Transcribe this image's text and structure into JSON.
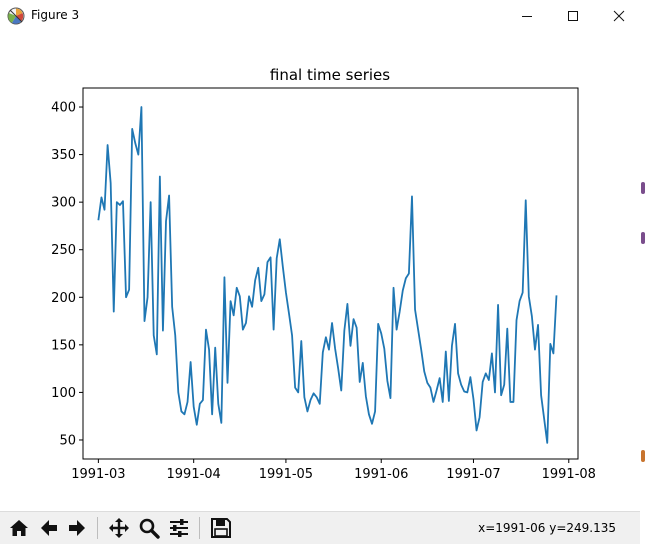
{
  "window": {
    "title": "Figure 3",
    "controls": {
      "minimize": "minimize-icon",
      "maximize": "maximize-icon",
      "close": "close-icon"
    }
  },
  "toolbar": {
    "buttons": [
      {
        "name": "home",
        "icon": "home-icon"
      },
      {
        "name": "back",
        "icon": "arrow-left-icon"
      },
      {
        "name": "forward",
        "icon": "arrow-right-icon"
      },
      {
        "name": "pan",
        "icon": "move-icon"
      },
      {
        "name": "zoom",
        "icon": "zoom-icon"
      },
      {
        "name": "configure-subplots",
        "icon": "sliders-icon"
      },
      {
        "name": "save",
        "icon": "save-icon"
      }
    ],
    "coordinates": "x=1991-06 y=249.135"
  },
  "chart_data": {
    "type": "line",
    "title": "final time series",
    "xlabel": "",
    "ylabel": "",
    "color": "#1f77b4",
    "xlim": [
      "1991-02-24",
      "1991-08-04"
    ],
    "ylim": [
      30,
      420
    ],
    "x_ticks": [
      {
        "date": "1991-03-01",
        "label": "1991-03"
      },
      {
        "date": "1991-04-01",
        "label": "1991-04"
      },
      {
        "date": "1991-05-01",
        "label": "1991-05"
      },
      {
        "date": "1991-06-01",
        "label": "1991-06"
      },
      {
        "date": "1991-07-01",
        "label": "1991-07"
      },
      {
        "date": "1991-08-01",
        "label": "1991-08"
      }
    ],
    "y_ticks": [
      50,
      100,
      150,
      200,
      250,
      300,
      350,
      400
    ],
    "grid": false,
    "series": [
      {
        "x": [
          "1991-03-01",
          "1991-03-02",
          "1991-03-03",
          "1991-03-04",
          "1991-03-05",
          "1991-03-06",
          "1991-03-07",
          "1991-03-08",
          "1991-03-09",
          "1991-03-10",
          "1991-03-11",
          "1991-03-12",
          "1991-03-13",
          "1991-03-14",
          "1991-03-15",
          "1991-03-16",
          "1991-03-17",
          "1991-03-18",
          "1991-03-19",
          "1991-03-20",
          "1991-03-21",
          "1991-03-22",
          "1991-03-23",
          "1991-03-24",
          "1991-03-25",
          "1991-03-26",
          "1991-03-27",
          "1991-03-28",
          "1991-03-29",
          "1991-03-30",
          "1991-03-31",
          "1991-04-01",
          "1991-04-02",
          "1991-04-03",
          "1991-04-04",
          "1991-04-05",
          "1991-04-06",
          "1991-04-07",
          "1991-04-08",
          "1991-04-09",
          "1991-04-10",
          "1991-04-11",
          "1991-04-12",
          "1991-04-13",
          "1991-04-14",
          "1991-04-15",
          "1991-04-16",
          "1991-04-17",
          "1991-04-18",
          "1991-04-19",
          "1991-04-20",
          "1991-04-21",
          "1991-04-22",
          "1991-04-23",
          "1991-04-24",
          "1991-04-25",
          "1991-04-26",
          "1991-04-27",
          "1991-04-28",
          "1991-04-29",
          "1991-04-30",
          "1991-05-01",
          "1991-05-02",
          "1991-05-03",
          "1991-05-04",
          "1991-05-05",
          "1991-05-06",
          "1991-05-07",
          "1991-05-08",
          "1991-05-09",
          "1991-05-10",
          "1991-05-11",
          "1991-05-12",
          "1991-05-13",
          "1991-05-14",
          "1991-05-15",
          "1991-05-16",
          "1991-05-17",
          "1991-05-18",
          "1991-05-19",
          "1991-05-20",
          "1991-05-21",
          "1991-05-22",
          "1991-05-23",
          "1991-05-24",
          "1991-05-25",
          "1991-05-26",
          "1991-05-27",
          "1991-05-28",
          "1991-05-29",
          "1991-05-30",
          "1991-05-31",
          "1991-06-01",
          "1991-06-02",
          "1991-06-03",
          "1991-06-04",
          "1991-06-05",
          "1991-06-06",
          "1991-06-07",
          "1991-06-08",
          "1991-06-09",
          "1991-06-10",
          "1991-06-11",
          "1991-06-12",
          "1991-06-13",
          "1991-06-14",
          "1991-06-15",
          "1991-06-16",
          "1991-06-17",
          "1991-06-18",
          "1991-06-19",
          "1991-06-20",
          "1991-06-21",
          "1991-06-22",
          "1991-06-23",
          "1991-06-24",
          "1991-06-25",
          "1991-06-26",
          "1991-06-27",
          "1991-06-28",
          "1991-06-29",
          "1991-06-30",
          "1991-07-01",
          "1991-07-02",
          "1991-07-03",
          "1991-07-04",
          "1991-07-05",
          "1991-07-06",
          "1991-07-07",
          "1991-07-08",
          "1991-07-09",
          "1991-07-10",
          "1991-07-11",
          "1991-07-12",
          "1991-07-13",
          "1991-07-14",
          "1991-07-15",
          "1991-07-16",
          "1991-07-17",
          "1991-07-18",
          "1991-07-19",
          "1991-07-20",
          "1991-07-21",
          "1991-07-22",
          "1991-07-23",
          "1991-07-24",
          "1991-07-25",
          "1991-07-26",
          "1991-07-27",
          "1991-07-28"
        ],
        "values": [
          281,
          305,
          292,
          360,
          320,
          185,
          300,
          297,
          301,
          200,
          208,
          377,
          362,
          350,
          400,
          175,
          200,
          300,
          160,
          140,
          327,
          165,
          280,
          307,
          190,
          160,
          100,
          80,
          77,
          90,
          132,
          85,
          66,
          88,
          92,
          166,
          145,
          77,
          147,
          88,
          68,
          221,
          110,
          196,
          181,
          210,
          201,
          166,
          173,
          201,
          190,
          218,
          231,
          196,
          203,
          237,
          242,
          166,
          241,
          261,
          232,
          205,
          183,
          160,
          105,
          100,
          154,
          95,
          80,
          92,
          99,
          95,
          88,
          142,
          158,
          145,
          173,
          146,
          125,
          102,
          165,
          193,
          149,
          177,
          168,
          111,
          131,
          96,
          77,
          67,
          80,
          172,
          162,
          146,
          112,
          94,
          210,
          166,
          185,
          207,
          220,
          225,
          306,
          187,
          166,
          145,
          122,
          110,
          105,
          90,
          102,
          115,
          90,
          143,
          91,
          149,
          172,
          120,
          108,
          101,
          100,
          116,
          93,
          60,
          74,
          111,
          120,
          113,
          141,
          100,
          192,
          97,
          108,
          167,
          90,
          90,
          176,
          196,
          205,
          302,
          201,
          180,
          145,
          171,
          97,
          72,
          47,
          151,
          141,
          202
        ]
      }
    ]
  }
}
